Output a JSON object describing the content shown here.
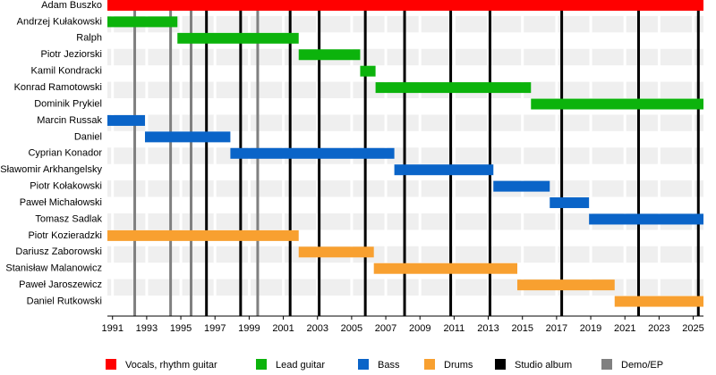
{
  "chart_data": {
    "type": "timeline",
    "xlim": [
      1990.7,
      2025.6
    ],
    "xticks": [
      1991,
      1993,
      1995,
      1997,
      1999,
      2001,
      2003,
      2005,
      2007,
      2009,
      2011,
      2013,
      2015,
      2017,
      2019,
      2021,
      2023,
      2025
    ],
    "series": [
      {
        "name": "Vocals, rhythm guitar",
        "color": "#ff0000",
        "members": [
          {
            "name": "Adam Buszko",
            "start": 1990.7,
            "end": 2025.6
          }
        ]
      },
      {
        "name": "Lead guitar",
        "color": "#0cb30c",
        "members": [
          {
            "name": "Andrzej Kułakowski",
            "start": 1990.7,
            "end": 1994.8
          },
          {
            "name": "Ralph",
            "start": 1994.8,
            "end": 2001.9
          },
          {
            "name": "Piotr Jeziorski",
            "start": 2001.9,
            "end": 2005.5
          },
          {
            "name": "Kamil Kondracki",
            "start": 2005.5,
            "end": 2006.4
          },
          {
            "name": "Konrad Ramotowski",
            "start": 2006.4,
            "end": 2015.5
          },
          {
            "name": "Dominik Prykiel",
            "start": 2015.5,
            "end": 2025.6
          }
        ]
      },
      {
        "name": "Bass",
        "color": "#0a64c8",
        "members": [
          {
            "name": "Marcin Russak",
            "start": 1990.7,
            "end": 1992.9
          },
          {
            "name": "Daniel",
            "start": 1992.9,
            "end": 1997.9
          },
          {
            "name": "Cyprian Konador",
            "start": 1997.9,
            "end": 2007.5
          },
          {
            "name": "Sławomir Arkhangelsky",
            "start": 2007.5,
            "end": 2013.3
          },
          {
            "name": "Piotr Kołakowski",
            "start": 2013.3,
            "end": 2016.6
          },
          {
            "name": "Paweł Michałowski",
            "start": 2016.6,
            "end": 2018.9
          },
          {
            "name": "Tomasz Sadlak",
            "start": 2018.9,
            "end": 2025.6
          }
        ]
      },
      {
        "name": "Drums",
        "color": "#f8a030",
        "members": [
          {
            "name": "Piotr Kozieradzki",
            "start": 1990.7,
            "end": 2001.9
          },
          {
            "name": "Dariusz Zaborowski",
            "start": 2001.9,
            "end": 2006.3
          },
          {
            "name": "Stanisław Malanowicz",
            "start": 2006.3,
            "end": 2014.7
          },
          {
            "name": "Paweł Jaroszewicz",
            "start": 2014.7,
            "end": 2020.4
          },
          {
            "name": "Daniel Rutkowski",
            "start": 2020.4,
            "end": 2025.6
          }
        ]
      }
    ],
    "events": [
      {
        "name": "Studio album",
        "color": "#000000",
        "x": [
          1996.5,
          1998.5,
          2001.4,
          2003.1,
          2005.8,
          2008.1,
          2010.8,
          2013.1,
          2017.3,
          2021.8,
          2025.3
        ]
      },
      {
        "name": "Demo/EP",
        "color": "#808080",
        "x": [
          1992.3,
          1994.4,
          1995.6,
          1999.5
        ]
      }
    ]
  }
}
